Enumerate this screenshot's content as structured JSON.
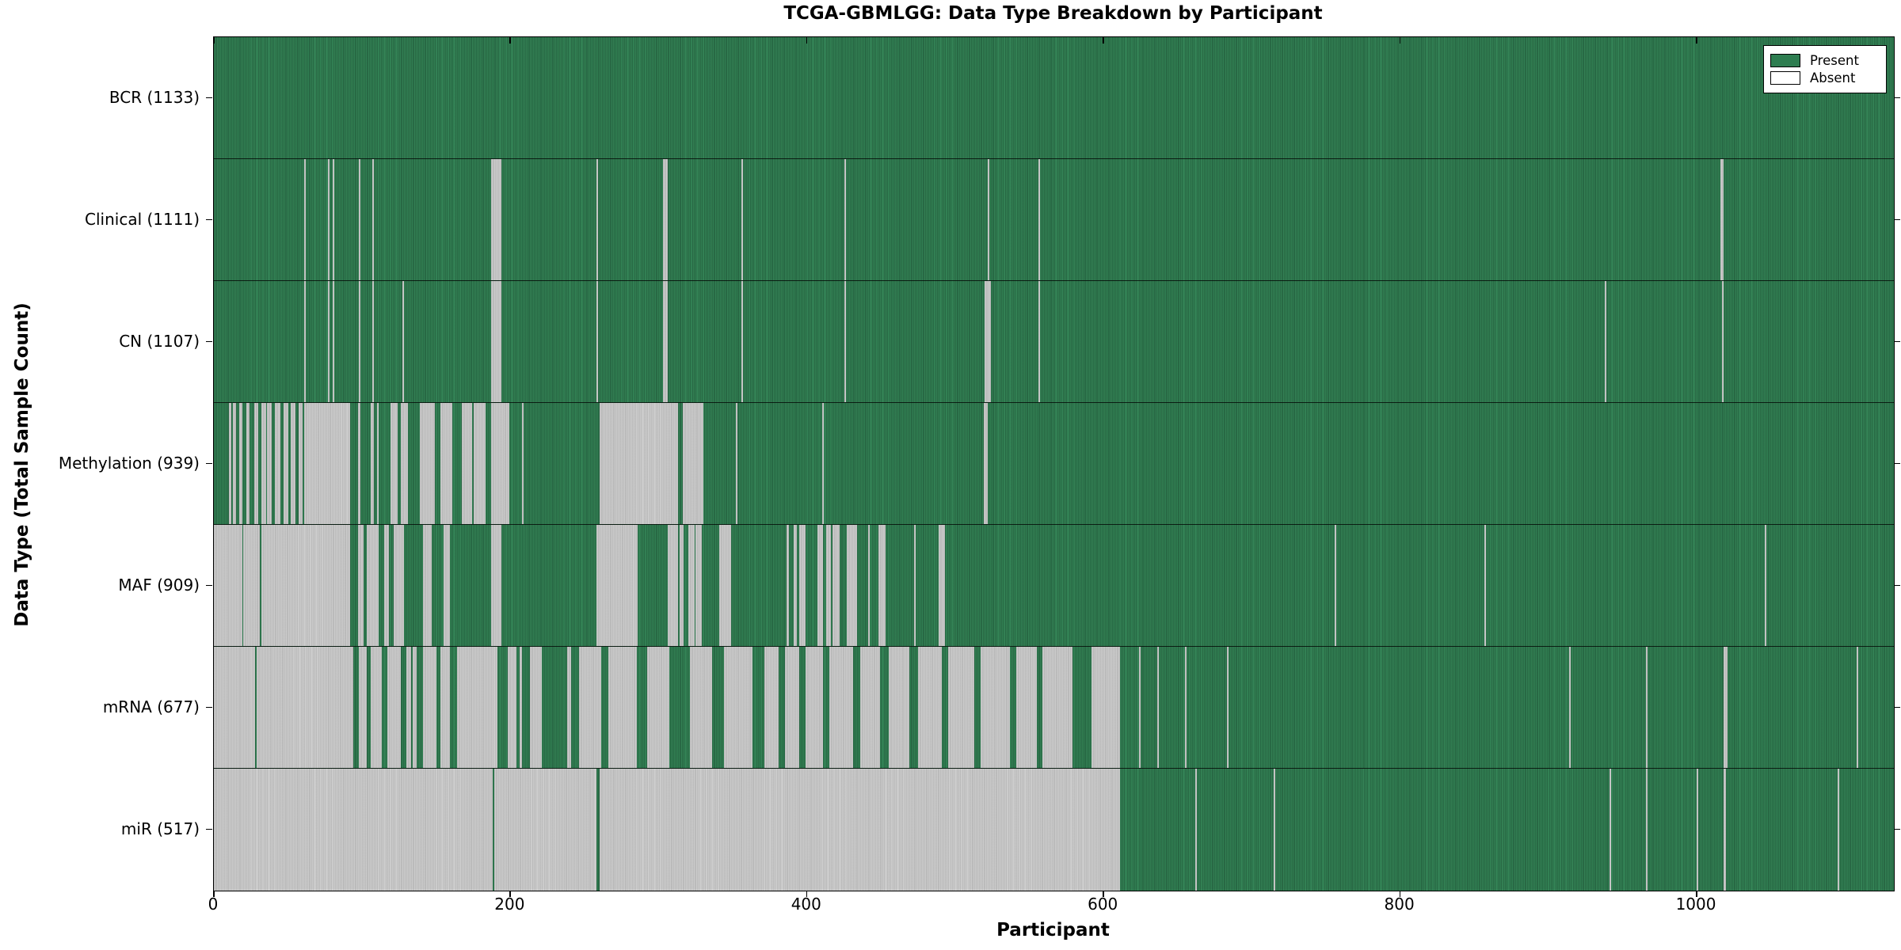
{
  "title": "TCGA-GBMLGG: Data Type Breakdown by Participant",
  "xlabel": "Participant",
  "ylabel": "Data Type (Total Sample Count)",
  "colors": {
    "present": "#2e7d50",
    "present_edge": "#1c5436",
    "absent": "#cbcbcb",
    "absent_edge": "#9f9f9f",
    "axis": "#000000",
    "background": "#ffffff"
  },
  "legend": {
    "items": [
      {
        "label": "Present",
        "swatch": "present"
      },
      {
        "label": "Absent",
        "swatch": "absent"
      }
    ]
  },
  "chart_data": {
    "type": "heatmap",
    "title": "TCGA-GBMLGG: Data Type Breakdown by Participant",
    "xlabel": "Participant",
    "ylabel": "Data Type (Total Sample Count)",
    "x_ticks": [
      0,
      200,
      400,
      600,
      800,
      1000
    ],
    "x_max": 1133,
    "total_participants": 1133,
    "legend_position": "upper right",
    "cell_states": {
      "present": "green",
      "absent": "light gray"
    },
    "rows": [
      {
        "name": "BCR",
        "label": "BCR (1133)",
        "present_count": 1133,
        "absent_count": 0,
        "absent_segments": []
      },
      {
        "name": "Clinical",
        "label": "Clinical (1111)",
        "present_count": 1111,
        "absent_count": 22,
        "absent_segments": [
          [
            61,
            61
          ],
          [
            77,
            77
          ],
          [
            80,
            80
          ],
          [
            98,
            98
          ],
          [
            107,
            107
          ],
          [
            187,
            193
          ],
          [
            258,
            258
          ],
          [
            303,
            305
          ],
          [
            356,
            356
          ],
          [
            425,
            425
          ],
          [
            522,
            522
          ],
          [
            556,
            556
          ],
          [
            1016,
            1017
          ]
        ]
      },
      {
        "name": "CN",
        "label": "CN (1107)",
        "present_count": 1107,
        "absent_count": 26,
        "absent_segments": [
          [
            61,
            61
          ],
          [
            77,
            77
          ],
          [
            80,
            80
          ],
          [
            98,
            98
          ],
          [
            107,
            107
          ],
          [
            127,
            127
          ],
          [
            187,
            193
          ],
          [
            258,
            258
          ],
          [
            303,
            305
          ],
          [
            356,
            356
          ],
          [
            425,
            425
          ],
          [
            520,
            523
          ],
          [
            556,
            556
          ],
          [
            938,
            938
          ],
          [
            1017,
            1017
          ]
        ]
      },
      {
        "name": "Methylation",
        "label": "Methylation (939)",
        "present_count": 939,
        "absent_count": 194,
        "absent_segments": [
          [
            10,
            11
          ],
          [
            13,
            14
          ],
          [
            17,
            18
          ],
          [
            22,
            23
          ],
          [
            27,
            29
          ],
          [
            32,
            34
          ],
          [
            36,
            38
          ],
          [
            41,
            44
          ],
          [
            47,
            49
          ],
          [
            52,
            54
          ],
          [
            57,
            59
          ],
          [
            61,
            91
          ],
          [
            97,
            98
          ],
          [
            106,
            107
          ],
          [
            110,
            110
          ],
          [
            119,
            123
          ],
          [
            126,
            130
          ],
          [
            139,
            148
          ],
          [
            153,
            160
          ],
          [
            167,
            173
          ],
          [
            175,
            182
          ],
          [
            187,
            198
          ],
          [
            208,
            208
          ],
          [
            260,
            312
          ],
          [
            316,
            329
          ],
          [
            352,
            352
          ],
          [
            410,
            410
          ],
          [
            519,
            521
          ]
        ]
      },
      {
        "name": "MAF",
        "label": "MAF (909)",
        "present_count": 909,
        "absent_count": 224,
        "absent_segments": [
          [
            0,
            18
          ],
          [
            20,
            30
          ],
          [
            32,
            91
          ],
          [
            97,
            100
          ],
          [
            103,
            110
          ],
          [
            115,
            117
          ],
          [
            121,
            127
          ],
          [
            141,
            146
          ],
          [
            155,
            158
          ],
          [
            187,
            193
          ],
          [
            258,
            285
          ],
          [
            306,
            312
          ],
          [
            314,
            316
          ],
          [
            320,
            323
          ],
          [
            325,
            328
          ],
          [
            341,
            348
          ],
          [
            386,
            387
          ],
          [
            391,
            392
          ],
          [
            395,
            398
          ],
          [
            407,
            410
          ],
          [
            413,
            415
          ],
          [
            417,
            421
          ],
          [
            427,
            433
          ],
          [
            441,
            441
          ],
          [
            448,
            452
          ],
          [
            472,
            472
          ],
          [
            489,
            492
          ],
          [
            756,
            756
          ],
          [
            857,
            857
          ],
          [
            1046,
            1046
          ]
        ]
      },
      {
        "name": "mRNA",
        "label": "mRNA (677)",
        "present_count": 677,
        "absent_count": 456,
        "absent_segments": [
          [
            0,
            27
          ],
          [
            29,
            93
          ],
          [
            98,
            102
          ],
          [
            106,
            112
          ],
          [
            117,
            125
          ],
          [
            130,
            132
          ],
          [
            134,
            136
          ],
          [
            141,
            149
          ],
          [
            153,
            158
          ],
          [
            164,
            190
          ],
          [
            198,
            203
          ],
          [
            206,
            207
          ],
          [
            213,
            220
          ],
          [
            238,
            240
          ],
          [
            246,
            260
          ],
          [
            266,
            284
          ],
          [
            292,
            306
          ],
          [
            321,
            335
          ],
          [
            344,
            362
          ],
          [
            371,
            380
          ],
          [
            385,
            394
          ],
          [
            399,
            410
          ],
          [
            415,
            430
          ],
          [
            436,
            448
          ],
          [
            455,
            468
          ],
          [
            475,
            490
          ],
          [
            495,
            512
          ],
          [
            517,
            536
          ],
          [
            541,
            554
          ],
          [
            559,
            578
          ],
          [
            592,
            610
          ],
          [
            624,
            624
          ],
          [
            636,
            636
          ],
          [
            655,
            655
          ],
          [
            683,
            683
          ],
          [
            914,
            914
          ],
          [
            966,
            966
          ],
          [
            1018,
            1020
          ],
          [
            1108,
            1108
          ]
        ]
      },
      {
        "name": "miR",
        "label": "miR (517)",
        "present_count": 517,
        "absent_count": 616,
        "absent_segments": [
          [
            0,
            187
          ],
          [
            189,
            257
          ],
          [
            260,
            610
          ],
          [
            662,
            662
          ],
          [
            715,
            715
          ],
          [
            941,
            941
          ],
          [
            966,
            966
          ],
          [
            1000,
            1000
          ],
          [
            1018,
            1019
          ],
          [
            1095,
            1095
          ]
        ]
      }
    ]
  }
}
